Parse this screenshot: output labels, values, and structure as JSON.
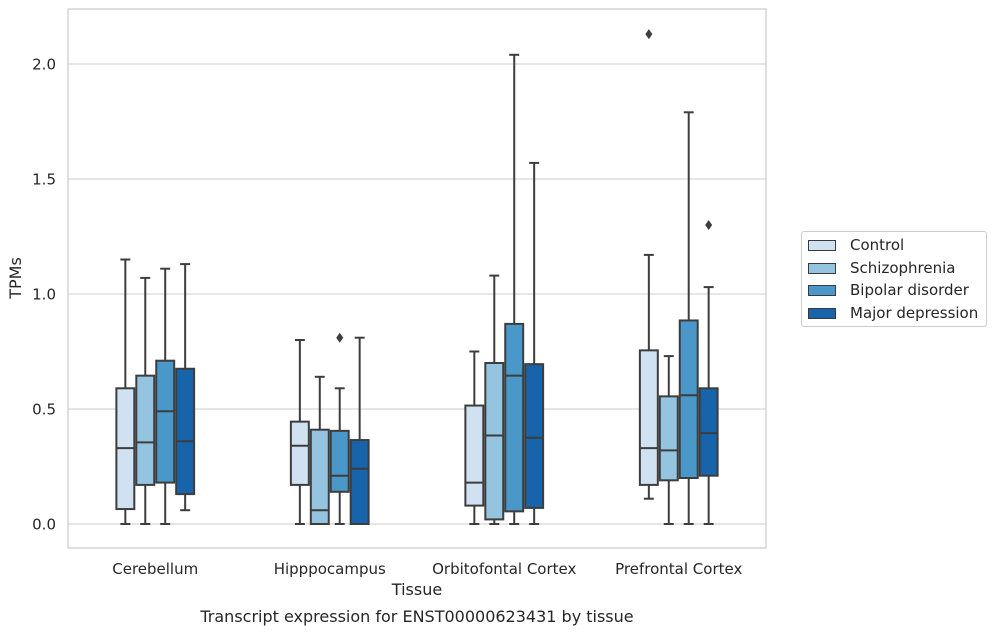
{
  "caption": "Transcript expression for ENST00000623431 by tissue",
  "chart_data": {
    "type": "box",
    "title": "",
    "xlabel": "Tissue",
    "ylabel": "TPMs",
    "ylim": [
      -0.1,
      2.35
    ],
    "yticks": [
      0.0,
      0.5,
      1.0,
      1.5,
      2.0
    ],
    "ytick_labels": [
      "0.0",
      "0.5",
      "1.0",
      "1.5",
      "2.0"
    ],
    "grid": "horizontal",
    "legend_position": "outside-right",
    "categories": [
      "Cerebellum",
      "Hipppocampus",
      "Orbitofontal Cortex",
      "Prefrontal Cortex"
    ],
    "series": [
      {
        "name": "Control",
        "color": "#d0e1f2",
        "boxes": [
          {
            "whisker_low": 0.0,
            "q1": 0.065,
            "median": 0.33,
            "q3": 0.59,
            "whisker_high": 1.15,
            "outliers": []
          },
          {
            "whisker_low": 0.0,
            "q1": 0.17,
            "median": 0.34,
            "q3": 0.445,
            "whisker_high": 0.8,
            "outliers": []
          },
          {
            "whisker_low": 0.0,
            "q1": 0.08,
            "median": 0.18,
            "q3": 0.515,
            "whisker_high": 0.75,
            "outliers": []
          },
          {
            "whisker_low": 0.11,
            "q1": 0.17,
            "median": 0.33,
            "q3": 0.755,
            "whisker_high": 1.17,
            "outliers": [
              2.13
            ]
          }
        ]
      },
      {
        "name": "Schizophrenia",
        "color": "#94c4df",
        "boxes": [
          {
            "whisker_low": 0.0,
            "q1": 0.17,
            "median": 0.355,
            "q3": 0.645,
            "whisker_high": 1.07,
            "outliers": []
          },
          {
            "whisker_low": 0.0,
            "q1": 0.0,
            "median": 0.06,
            "q3": 0.41,
            "whisker_high": 0.64,
            "outliers": []
          },
          {
            "whisker_low": 0.0,
            "q1": 0.02,
            "median": 0.385,
            "q3": 0.7,
            "whisker_high": 1.08,
            "outliers": []
          },
          {
            "whisker_low": 0.0,
            "q1": 0.19,
            "median": 0.32,
            "q3": 0.555,
            "whisker_high": 0.73,
            "outliers": []
          }
        ]
      },
      {
        "name": "Bipolar disorder",
        "color": "#4a98c9",
        "boxes": [
          {
            "whisker_low": 0.0,
            "q1": 0.18,
            "median": 0.49,
            "q3": 0.71,
            "whisker_high": 1.11,
            "outliers": []
          },
          {
            "whisker_low": 0.0,
            "q1": 0.14,
            "median": 0.21,
            "q3": 0.405,
            "whisker_high": 0.59,
            "outliers": [
              0.81
            ]
          },
          {
            "whisker_low": 0.0,
            "q1": 0.055,
            "median": 0.645,
            "q3": 0.87,
            "whisker_high": 2.04,
            "outliers": []
          },
          {
            "whisker_low": 0.0,
            "q1": 0.2,
            "median": 0.56,
            "q3": 0.885,
            "whisker_high": 1.79,
            "outliers": []
          }
        ]
      },
      {
        "name": "Major depression",
        "color": "#1764ab",
        "boxes": [
          {
            "whisker_low": 0.06,
            "q1": 0.13,
            "median": 0.36,
            "q3": 0.675,
            "whisker_high": 1.13,
            "outliers": []
          },
          {
            "whisker_low": 0.0,
            "q1": 0.0,
            "median": 0.24,
            "q3": 0.365,
            "whisker_high": 0.81,
            "outliers": []
          },
          {
            "whisker_low": 0.0,
            "q1": 0.07,
            "median": 0.375,
            "q3": 0.695,
            "whisker_high": 1.57,
            "outliers": []
          },
          {
            "whisker_low": 0.0,
            "q1": 0.21,
            "median": 0.395,
            "q3": 0.59,
            "whisker_high": 1.03,
            "outliers": [
              1.3
            ]
          }
        ]
      }
    ]
  }
}
